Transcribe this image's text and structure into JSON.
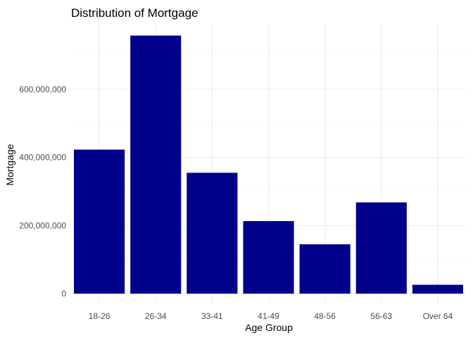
{
  "chart_data": {
    "type": "bar",
    "title": "Distribution of Mortgage",
    "xlabel": "Age Group",
    "ylabel": "Mortgage",
    "categories": [
      "18-26",
      "26-34",
      "33-41",
      "41-49",
      "48-56",
      "56-63",
      "Over 64"
    ],
    "values": [
      423000000,
      758000000,
      355000000,
      213000000,
      145000000,
      268000000,
      26000000
    ],
    "ylim": [
      0,
      785000000
    ],
    "yticks": [
      0,
      200000000,
      400000000,
      600000000
    ],
    "ytick_labels": [
      "0",
      "200,000,000",
      "400,000,000",
      "600,000,000"
    ],
    "bar_color": "#00008B",
    "grid": true,
    "legend": "none"
  }
}
